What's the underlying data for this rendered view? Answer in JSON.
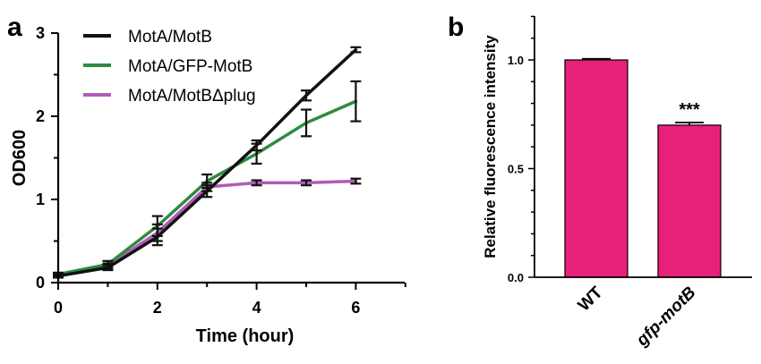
{
  "chart_data": [
    {
      "panel": "a",
      "type": "line",
      "xlabel": "Time (hour)",
      "ylabel": "OD600",
      "xlim": [
        0,
        7
      ],
      "ylim": [
        0,
        3
      ],
      "xticks": [
        0,
        2,
        4,
        6
      ],
      "yticks": [
        0,
        1,
        2,
        3
      ],
      "legend_position": "top-left",
      "series": [
        {
          "name": "MotA/MotB",
          "color": "#111111",
          "x": [
            0,
            1,
            2,
            3,
            4,
            5,
            6
          ],
          "y": [
            0.08,
            0.18,
            0.55,
            1.1,
            1.65,
            2.25,
            2.8
          ],
          "err": [
            0.02,
            0.03,
            0.1,
            0.07,
            0.06,
            0.06,
            0.03
          ]
        },
        {
          "name": "MotA/GFP-MotB",
          "color": "#2e8b3e",
          "x": [
            0,
            1,
            2,
            3,
            4,
            5,
            6
          ],
          "y": [
            0.1,
            0.22,
            0.68,
            1.22,
            1.55,
            1.92,
            2.18
          ],
          "err": [
            0.02,
            0.04,
            0.12,
            0.08,
            0.12,
            0.16,
            0.24
          ]
        },
        {
          "name": "MotA/MotBΔplug",
          "color": "#b05cb6",
          "x": [
            0,
            1,
            2,
            3,
            4,
            5,
            6
          ],
          "y": [
            0.08,
            0.2,
            0.6,
            1.15,
            1.2,
            1.2,
            1.22
          ],
          "err": [
            0.02,
            0.03,
            0.1,
            0.05,
            0.03,
            0.03,
            0.03
          ]
        }
      ]
    },
    {
      "panel": "b",
      "type": "bar",
      "ylabel": "Relative fluorescence intensity",
      "ylim": [
        0,
        1.2
      ],
      "yticks": [
        0.0,
        0.5,
        1.0
      ],
      "ytick_labels": [
        "0.0",
        "0.5",
        "1.0"
      ],
      "categories": [
        "WT",
        "gfp-motB"
      ],
      "values": [
        1.0,
        0.7
      ],
      "err": [
        0.005,
        0.012
      ],
      "bar_color": "#e8207a",
      "annotations": [
        {
          "category": "gfp-motB",
          "text": "***"
        }
      ]
    }
  ],
  "panels": {
    "a_label": "a",
    "b_label": "b"
  }
}
